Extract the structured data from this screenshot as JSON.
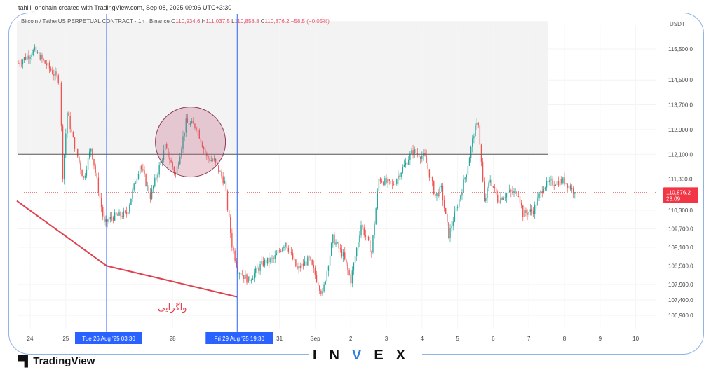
{
  "credit": "tahlil_onchain created with TradingView.com, Sep 08, 2025 09:06 UTC+3:30",
  "legend": {
    "symbol": "Bitcoin / TetherUS PERPETUAL CONTRACT · 1h · Binance",
    "open_label": "O",
    "open": "110,934.6",
    "high_label": "H",
    "high": "111,037.5",
    "low_label": "L",
    "low": "110,858.8",
    "close_label": "C",
    "close": "110,876.2",
    "change": "−58.5 (−0.05%)"
  },
  "price_axis": {
    "currency": "USDT",
    "ticks": [
      "115,500.0",
      "114,500.0",
      "113,700.0",
      "112,900.0",
      "112,100.0",
      "111,300.0",
      "110,300.0",
      "109,700.0",
      "109,100.0",
      "108,500.0",
      "107,900.0",
      "107,400.0",
      "106,900.0"
    ],
    "tick_values": [
      115500,
      114500,
      113700,
      112900,
      112100,
      111300,
      110300,
      109700,
      109100,
      108500,
      107900,
      107400,
      106900
    ],
    "last_price": "110,876.2",
    "last_price_value": 110876.2,
    "countdown": "23:09"
  },
  "time_axis": {
    "ticks": [
      {
        "label": "24",
        "t": "08-24 00:00"
      },
      {
        "label": "25",
        "t": "08-25 00:00"
      },
      {
        "label": "28",
        "t": "08-28 00:00"
      },
      {
        "label": "31",
        "t": "08-31 00:00"
      },
      {
        "label": "Sep",
        "t": "09-01 00:00"
      },
      {
        "label": "2",
        "t": "09-02 00:00"
      },
      {
        "label": "3",
        "t": "09-03 00:00"
      },
      {
        "label": "4",
        "t": "09-04 00:00"
      },
      {
        "label": "5",
        "t": "09-05 00:00"
      },
      {
        "label": "6",
        "t": "09-06 00:00"
      },
      {
        "label": "7",
        "t": "09-07 00:00"
      },
      {
        "label": "8",
        "t": "09-08 00:00"
      },
      {
        "label": "9",
        "t": "09-09 00:00"
      },
      {
        "label": "10",
        "t": "09-10 00:00"
      }
    ],
    "crosshairs": [
      {
        "label": "Tue 26 Aug '25   03:30",
        "t": "08-26 03:30"
      },
      {
        "label": "Fri 29 Aug '25   19:30",
        "t": "08-29 19:30"
      }
    ]
  },
  "annotations": {
    "divergence_label": "واگرایی",
    "horizontal_level": 112100,
    "divergence_line": [
      [
        "08-23 15:00",
        110600
      ],
      [
        "08-26 03:30",
        108500
      ],
      [
        "08-29 19:30",
        107500
      ]
    ],
    "highlight_circle": {
      "t": "08-28 12:00",
      "price": 112500
    },
    "shaded_zone": {
      "from": "08-23 15:00",
      "to": "09-07 13:00",
      "top": 116400,
      "bottom": 112100
    }
  },
  "colors": {
    "up": "#26a69a",
    "down": "#ef5350",
    "crosshair": "#2962ff",
    "divergence": "#e0404f",
    "frame": "#8fb3e3"
  },
  "chart_data": {
    "type": "candlestick",
    "interval": "1h",
    "ylim": [
      106500,
      116400
    ],
    "path": [
      [
        "08-23 16:00",
        115050
      ],
      [
        "08-24 03:00",
        115450
      ],
      [
        "08-24 08:00",
        115160
      ],
      [
        "08-24 20:00",
        114480
      ],
      [
        "08-24 22:00",
        111430
      ],
      [
        "08-25 01:00",
        113460
      ],
      [
        "08-25 05:00",
        112560
      ],
      [
        "08-25 12:00",
        111310
      ],
      [
        "08-25 17:00",
        112330
      ],
      [
        "08-25 22:00",
        110970
      ],
      [
        "08-26 02:00",
        109840
      ],
      [
        "08-26 07:00",
        110070
      ],
      [
        "08-26 17:00",
        110180
      ],
      [
        "08-27 02:00",
        111770
      ],
      [
        "08-27 09:00",
        110750
      ],
      [
        "08-27 19:00",
        112330
      ],
      [
        "08-28 02:00",
        111430
      ],
      [
        "08-28 09:00",
        113125
      ],
      [
        "08-28 16:00",
        113010
      ],
      [
        "08-28 23:00",
        111990
      ],
      [
        "08-29 04:00",
        111880
      ],
      [
        "08-29 11:00",
        111200
      ],
      [
        "08-29 16:00",
        109170
      ],
      [
        "08-29 20:00",
        108370
      ],
      [
        "08-30 03:00",
        108030
      ],
      [
        "08-30 13:00",
        108600
      ],
      [
        "08-30 20:00",
        108710
      ],
      [
        "08-31 04:00",
        109280
      ],
      [
        "08-31 12:00",
        108370
      ],
      [
        "08-31 20:00",
        108710
      ],
      [
        "09-01 05:00",
        107580
      ],
      [
        "09-01 12:00",
        109390
      ],
      [
        "09-01 19:00",
        108820
      ],
      [
        "09-02 00:00",
        108030
      ],
      [
        "09-02 07:00",
        109840
      ],
      [
        "09-02 14:00",
        108940
      ],
      [
        "09-02 19:00",
        111310
      ],
      [
        "09-03 04:00",
        111090
      ],
      [
        "09-03 11:00",
        111650
      ],
      [
        "09-03 18:00",
        112220
      ],
      [
        "09-04 02:00",
        111990
      ],
      [
        "09-04 09:00",
        110750
      ],
      [
        "09-04 13:00",
        110970
      ],
      [
        "09-04 18:00",
        109500
      ],
      [
        "09-05 01:00",
        110640
      ],
      [
        "09-05 06:00",
        111540
      ],
      [
        "09-05 11:00",
        112790
      ],
      [
        "09-05 14:00",
        113125
      ],
      [
        "09-05 18:00",
        110520
      ],
      [
        "09-05 22:00",
        111310
      ],
      [
        "09-06 03:00",
        110640
      ],
      [
        "09-06 10:00",
        110860
      ],
      [
        "09-06 17:00",
        110860
      ],
      [
        "09-06 20:00",
        110180
      ],
      [
        "09-07 03:00",
        110290
      ],
      [
        "09-07 10:00",
        111090
      ],
      [
        "09-07 17:00",
        111200
      ],
      [
        "09-08 00:00",
        111250
      ],
      [
        "09-08 07:00",
        110876
      ]
    ]
  },
  "branding": {
    "tradingview": "TradingView",
    "invex_left": "IN",
    "invex_v": "V",
    "invex_right": "EX"
  }
}
